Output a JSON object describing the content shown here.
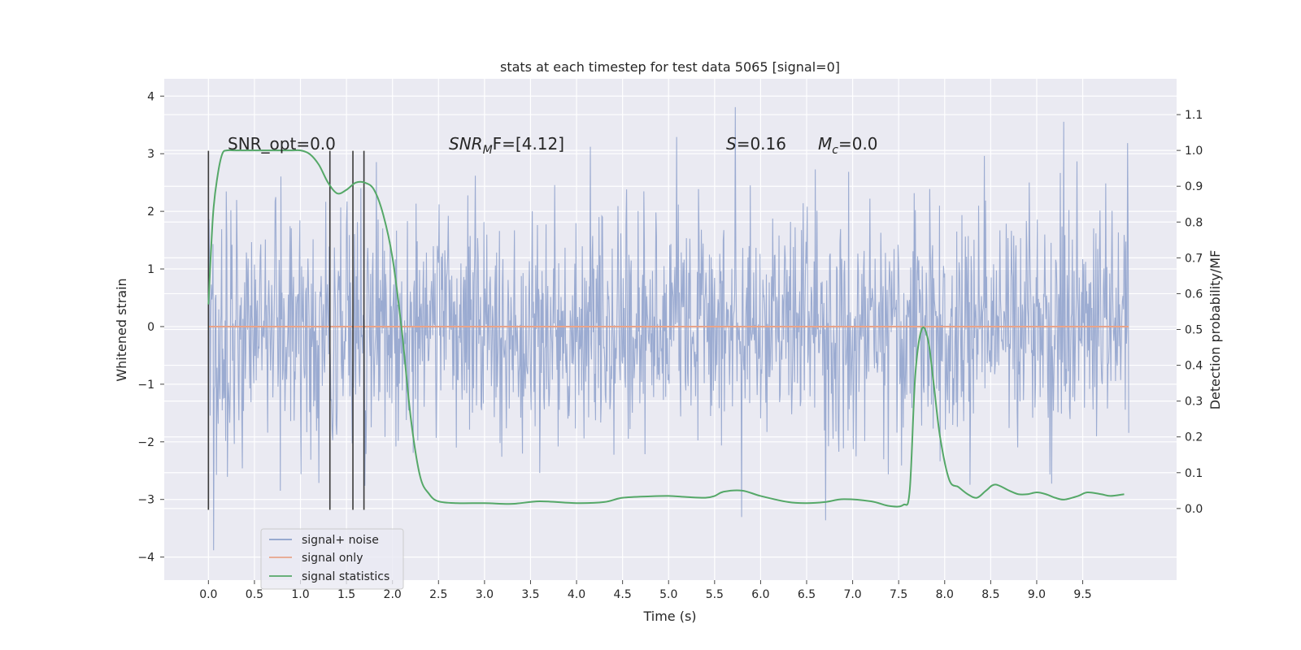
{
  "chart_data": {
    "type": "line",
    "title": "stats at each timestep for test data 5065 [signal=0]",
    "xlabel": "Time (s)",
    "ylabel_left": "Whitened strain",
    "ylabel_right": "Detection probability/MF",
    "xlim": [
      -0.48,
      10.52
    ],
    "ylim_left": [
      -4.4,
      4.3
    ],
    "ylim_right": [
      -0.2,
      1.2
    ],
    "x_ticks": [
      0.0,
      0.5,
      1.0,
      1.5,
      2.0,
      2.5,
      3.0,
      3.5,
      4.0,
      4.5,
      5.0,
      5.5,
      6.0,
      6.5,
      7.0,
      7.5,
      8.0,
      8.5,
      9.0,
      9.5
    ],
    "x_tick_labels": [
      "0.0",
      "0.5",
      "1.0",
      "1.5",
      "2.0",
      "2.5",
      "3.0",
      "3.5",
      "4.0",
      "4.5",
      "5.0",
      "5.5",
      "6.0",
      "6.5",
      "7.0",
      "7.5",
      "8.0",
      "8.5",
      "9.0",
      "9.5"
    ],
    "y_ticks_left": [
      4,
      3,
      2,
      1,
      0,
      -1,
      -2,
      -3,
      -4
    ],
    "y_tick_labels_left": [
      "4",
      "3",
      "2",
      "1",
      "0",
      "−1",
      "−2",
      "−3",
      "−4"
    ],
    "y_ticks_right": [
      1.1,
      1.0,
      0.9,
      0.8,
      0.7,
      0.6,
      0.5,
      0.4,
      0.3,
      0.2,
      0.1,
      0.0
    ],
    "y_tick_labels_right": [
      "1.1",
      "1.0",
      "0.9",
      "0.8",
      "0.7",
      "0.6",
      "0.5",
      "0.4",
      "0.3",
      "0.2",
      "0.1",
      "0.0"
    ],
    "grid": true,
    "legend_position": "lower-left",
    "series": [
      {
        "name": "signal+ noise",
        "axis": "left",
        "color": "#8da0cb",
        "description_kind": "dense noise trace",
        "x_range": [
          0.0,
          10.0
        ],
        "approx_envelope": [
          -4.05,
          3.92
        ],
        "core_band": [
          -1.3,
          1.2
        ]
      },
      {
        "name": "signal only",
        "axis": "left",
        "color": "#e8a48a",
        "x": [
          0.0,
          10.0
        ],
        "values": [
          0.0,
          0.0
        ]
      },
      {
        "name": "signal statistics",
        "axis": "right",
        "color": "#55a868",
        "x": [
          0.0,
          0.05,
          0.1,
          0.15,
          0.2,
          0.3,
          0.5,
          0.7,
          0.9,
          1.0,
          1.1,
          1.2,
          1.3,
          1.4,
          1.5,
          1.6,
          1.7,
          1.8,
          1.9,
          2.0,
          2.1,
          2.2,
          2.3,
          2.4,
          2.5,
          2.7,
          3.0,
          3.3,
          3.6,
          4.0,
          4.3,
          4.5,
          4.8,
          5.0,
          5.2,
          5.4,
          5.5,
          5.6,
          5.8,
          6.0,
          6.3,
          6.5,
          6.7,
          6.9,
          7.2,
          7.4,
          7.55,
          7.62,
          7.68,
          7.75,
          7.82,
          7.88,
          7.95,
          8.05,
          8.15,
          8.25,
          8.35,
          8.45,
          8.55,
          8.7,
          8.8,
          8.9,
          9.0,
          9.1,
          9.2,
          9.3,
          9.45,
          9.55,
          9.7,
          9.8,
          9.95
        ],
        "values": [
          0.57,
          0.82,
          0.93,
          0.99,
          1.0,
          1.0,
          1.0,
          1.0,
          1.0,
          1.0,
          0.99,
          0.96,
          0.91,
          0.88,
          0.89,
          0.91,
          0.91,
          0.89,
          0.82,
          0.7,
          0.5,
          0.25,
          0.09,
          0.04,
          0.02,
          0.015,
          0.015,
          0.013,
          0.02,
          0.015,
          0.018,
          0.03,
          0.034,
          0.035,
          0.032,
          0.03,
          0.035,
          0.047,
          0.05,
          0.035,
          0.018,
          0.015,
          0.018,
          0.026,
          0.02,
          0.007,
          0.01,
          0.05,
          0.37,
          0.5,
          0.47,
          0.35,
          0.2,
          0.08,
          0.06,
          0.04,
          0.03,
          0.05,
          0.067,
          0.05,
          0.04,
          0.04,
          0.045,
          0.04,
          0.03,
          0.025,
          0.035,
          0.045,
          0.04,
          0.035,
          0.04
        ]
      }
    ],
    "vertical_markers_x": [
      0.0,
      1.32,
      1.57,
      1.69
    ],
    "vertical_markers_range_left": [
      -3.18,
      3.05
    ],
    "annotations": [
      {
        "text": "SNR_opt=0.0"
      },
      {
        "text_main": "SNR",
        "text_sub": "M",
        "text_after": "F=[4.12]"
      },
      {
        "text_main": "S",
        "text_after": "=0.16"
      },
      {
        "text_main": "M",
        "text_sub": "c",
        "text_after": "=0.0"
      }
    ],
    "legend": [
      "signal+ noise",
      "signal only",
      "signal statistics"
    ],
    "colors": {
      "plot_background": "#eaeaf2",
      "grid": "#ffffff",
      "text": "#262626",
      "marker": "#3a3a3a"
    }
  }
}
